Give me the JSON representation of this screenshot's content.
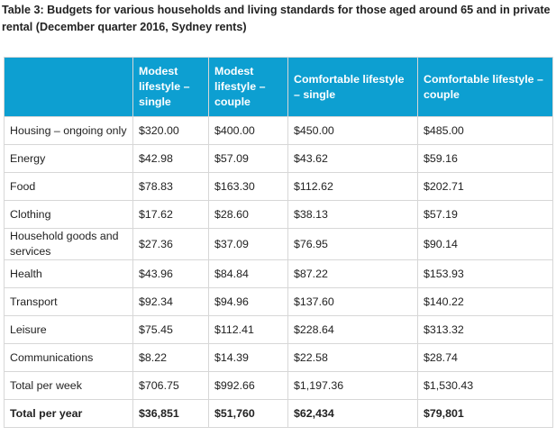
{
  "caption": "Table 3: Budgets for various households and living standards for those aged around 65 and in private rental (December quarter 2016, Sydney rents)",
  "table": {
    "headers": [
      "",
      "Modest lifestyle – single",
      "Modest lifestyle – couple",
      "Comfortable lifestyle – single",
      "Comfortable lifestyle – couple"
    ],
    "rows": [
      [
        "Housing – ongoing only",
        "$320.00",
        "$400.00",
        "$450.00",
        "$485.00"
      ],
      [
        "Energy",
        "$42.98",
        "$57.09",
        "$43.62",
        "$59.16"
      ],
      [
        "Food",
        "$78.83",
        "$163.30",
        "$112.62",
        "$202.71"
      ],
      [
        "Clothing",
        "$17.62",
        "$28.60",
        "$38.13",
        "$57.19"
      ],
      [
        "Household goods and services",
        "$27.36",
        "$37.09",
        "$76.95",
        "$90.14"
      ],
      [
        "Health",
        "$43.96",
        "$84.84",
        "$87.22",
        "$153.93"
      ],
      [
        "Transport",
        "$92.34",
        "$94.96",
        "$137.60",
        "$140.22"
      ],
      [
        "Leisure",
        "$75.45",
        "$112.41",
        "$228.64",
        "$313.32"
      ],
      [
        "Communications",
        "$8.22",
        "$14.39",
        "$22.58",
        "$28.74"
      ],
      [
        "Total per week",
        "$706.75",
        "$992.66",
        "$1,197.36",
        "$1,530.43"
      ],
      [
        "Total per year",
        "$36,851",
        "$51,760",
        "$62,434",
        "$79,801"
      ]
    ]
  },
  "colors": {
    "header_bg": "#0d9fd1",
    "header_text": "#ffffff",
    "grid": "#d7d7d7",
    "text": "#222222"
  }
}
